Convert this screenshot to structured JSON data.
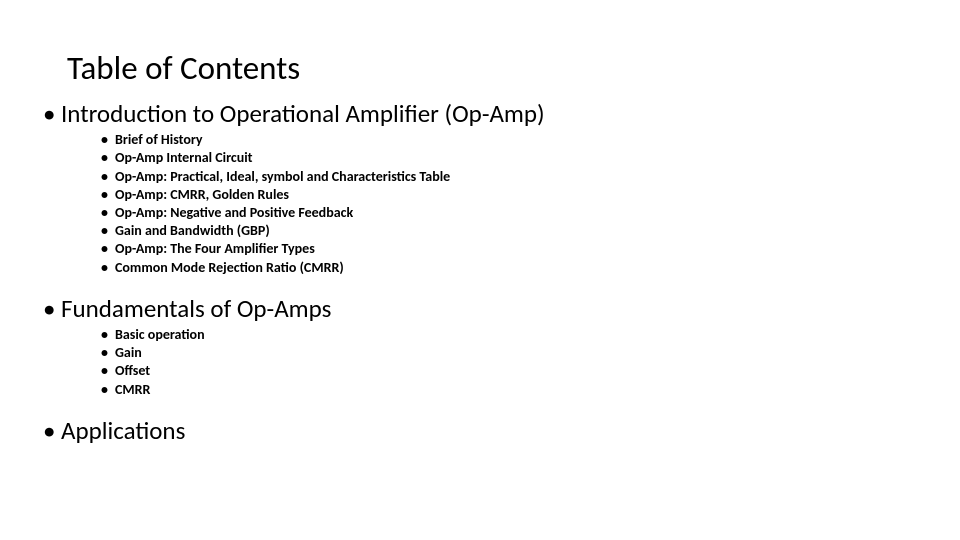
{
  "title": "Table of Contents",
  "bullets": {
    "l1": "•",
    "l2": "•"
  },
  "typography": {
    "title_fontsize": 33,
    "section_fontsize": 25,
    "sub_fontsize": 14,
    "sub_fontweight": 600,
    "font_family": "Calibri",
    "text_color": "#000000",
    "background_color": "#ffffff"
  },
  "sections": [
    {
      "label": "Introduction to Operational Amplifier (Op-Amp)",
      "items": [
        "Brief of History",
        "Op-Amp Internal Circuit",
        "Op-Amp: Practical, Ideal, symbol and Characteristics Table",
        "Op-Amp: CMRR, Golden Rules",
        "Op-Amp: Negative and Positive Feedback",
        "Gain and Bandwidth (GBP)",
        "Op-Amp: The Four Amplifier Types",
        "Common Mode Rejection Ratio (CMRR)"
      ]
    },
    {
      "label": "Fundamentals of Op-Amps",
      "items": [
        "Basic operation",
        "Gain",
        "Offset",
        "CMRR"
      ]
    },
    {
      "label": "Applications",
      "items": []
    }
  ]
}
